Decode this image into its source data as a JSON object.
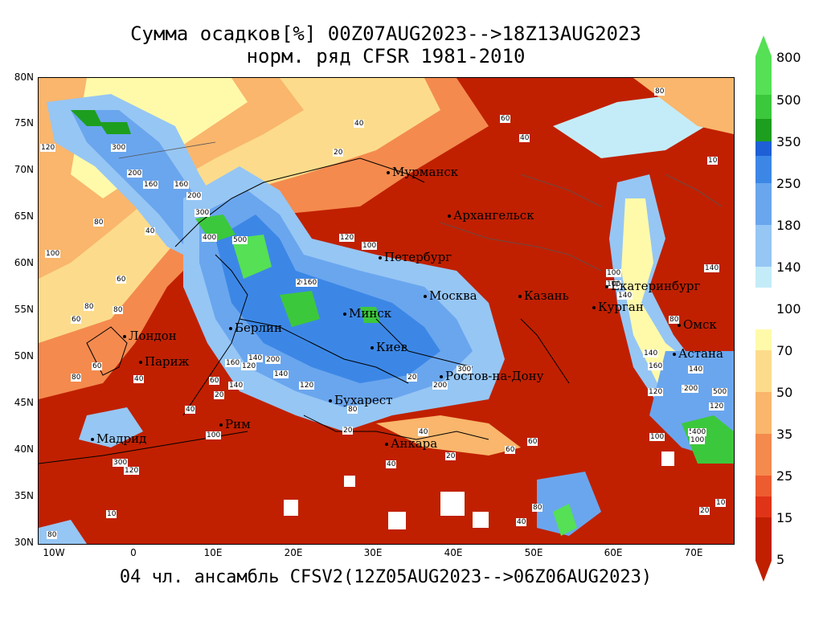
{
  "title": {
    "line1": "Сумма осадков[%] 00Z07AUG2023-->18Z13AUG2023",
    "line2": "норм. ряд CFSR 1981-2010"
  },
  "footer": "04 чл. ансамбль CFSV2(12Z05AUG2023-->06Z06AUG2023)",
  "axes": {
    "lat_labels": [
      "80N",
      "75N",
      "70N",
      "65N",
      "60N",
      "55N",
      "50N",
      "45N",
      "40N",
      "35N",
      "30N"
    ],
    "lon_labels": [
      "10W",
      "0",
      "10E",
      "20E",
      "30E",
      "40E",
      "50E",
      "60E",
      "70E"
    ]
  },
  "cities": [
    "Мурманск",
    "Архангельск",
    "Петербург",
    "Москва",
    "Казань",
    "Екатеринбург",
    "Курган",
    "Омск",
    "Астана",
    "Минск",
    "Берлин",
    "Лондон",
    "Париж",
    "Киев",
    "Ростов-на-Дону",
    "Бухарест",
    "Рим",
    "Мадрид",
    "Анкара"
  ],
  "contour_labels": [
    "120",
    "300",
    "200",
    "160",
    "200",
    "160",
    "300",
    "400",
    "500",
    "80",
    "60",
    "40",
    "100",
    "60",
    "80",
    "40",
    "140",
    "100",
    "120",
    "100",
    "140",
    "160",
    "200",
    "80",
    "60",
    "40",
    "20",
    "10",
    "80",
    "100",
    "140",
    "60",
    "40",
    "20",
    "80",
    "120",
    "140",
    "160",
    "200",
    "300",
    "400",
    "500",
    "100",
    "80",
    "120",
    "140",
    "200",
    "20",
    "40",
    "60",
    "80",
    "100",
    "120",
    "140",
    "160",
    "200",
    "300",
    "20",
    "40",
    "80",
    "120",
    "10",
    "20",
    "40",
    "60",
    "80",
    "10",
    "20",
    "40",
    "60",
    "100",
    "120",
    "140",
    "200",
    "400",
    "500"
  ],
  "colorbar": {
    "labels": [
      "800",
      "500",
      "350",
      "250",
      "180",
      "140",
      "100",
      "70",
      "50",
      "35",
      "25",
      "15",
      "5"
    ],
    "colors": [
      "#55e055",
      "#3cc83c",
      "#1e9e1e",
      "#1f5fd6",
      "#3c87e6",
      "#6aa6ee",
      "#96c6f4",
      "#c4ecf8",
      "#fffaaa",
      "#fcdc8c",
      "#f9b66c",
      "#f48a4e",
      "#ec5c30",
      "#e03418",
      "#c02000"
    ]
  }
}
